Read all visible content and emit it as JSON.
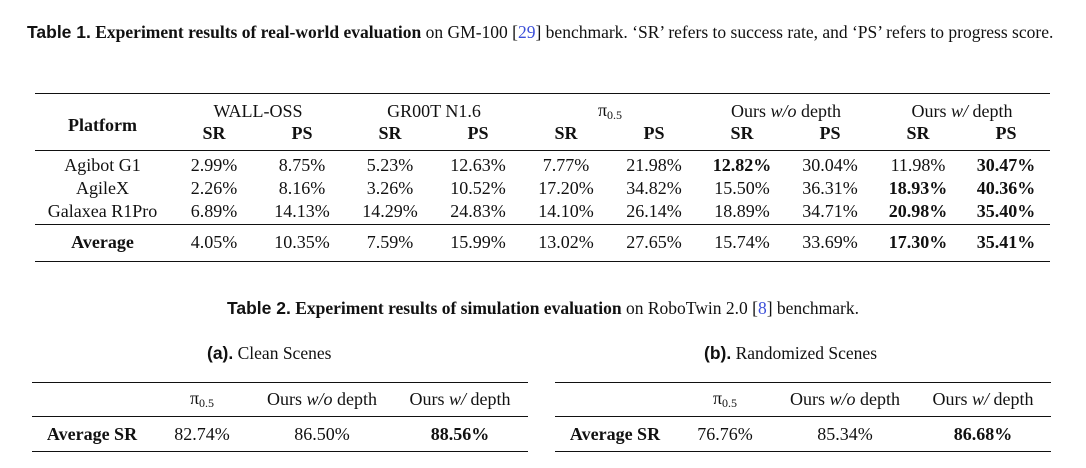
{
  "table1": {
    "caption": {
      "label": "Table 1.",
      "title": "Experiment results of real-world evaluation",
      "text_before_ref": " on GM-100 [",
      "ref": "29",
      "text_after_ref": "] benchmark. ‘SR’ refers to success rate, and ‘PS’ refers to progress score."
    },
    "platform_header": "Platform",
    "groups": [
      {
        "name": "WALL-OSS"
      },
      {
        "name": "GR00T N1.6"
      },
      {
        "name": "π",
        "subscript": "0.5"
      },
      {
        "name": "Ours",
        "italic": "w/o",
        "suffix": "depth"
      },
      {
        "name": "Ours",
        "italic": "w/",
        "suffix": "depth"
      }
    ],
    "metrics": [
      "SR",
      "PS"
    ],
    "rows": [
      {
        "platform": "Agibot G1",
        "cells": [
          "2.99%",
          "8.75%",
          "5.23%",
          "12.63%",
          "7.77%",
          "21.98%",
          "12.82%",
          "30.04%",
          "11.98%",
          "30.47%"
        ],
        "bold": [
          6,
          9
        ]
      },
      {
        "platform": "AgileX",
        "cells": [
          "2.26%",
          "8.16%",
          "3.26%",
          "10.52%",
          "17.20%",
          "34.82%",
          "15.50%",
          "36.31%",
          "18.93%",
          "40.36%"
        ],
        "bold": [
          8,
          9
        ]
      },
      {
        "platform": "Galaxea R1Pro",
        "cells": [
          "6.89%",
          "14.13%",
          "14.29%",
          "24.83%",
          "14.10%",
          "26.14%",
          "18.89%",
          "34.71%",
          "20.98%",
          "35.40%"
        ],
        "bold": [
          8,
          9
        ]
      }
    ],
    "average": {
      "platform": "Average",
      "cells": [
        "4.05%",
        "10.35%",
        "7.59%",
        "15.99%",
        "13.02%",
        "27.65%",
        "15.74%",
        "33.69%",
        "17.30%",
        "35.41%"
      ],
      "bold": [
        8,
        9
      ]
    }
  },
  "table2": {
    "caption": {
      "label": "Table 2.",
      "title": "Experiment results of simulation evaluation",
      "text_before_ref": " on RoboTwin 2.0 [",
      "ref": "8",
      "text_after_ref": "] benchmark."
    },
    "subtables": [
      {
        "label": "(a).",
        "caption": "Clean Scenes",
        "columns": [
          {
            "name": "π",
            "subscript": "0.5"
          },
          {
            "name": "Ours",
            "italic": "w/o",
            "suffix": "depth"
          },
          {
            "name": "Ours",
            "italic": "w/",
            "suffix": "depth"
          }
        ],
        "row_label": "Average SR",
        "cells": [
          "82.74%",
          "86.50%",
          "88.56%"
        ],
        "bold": [
          2
        ]
      },
      {
        "label": "(b).",
        "caption": "Randomized Scenes",
        "columns": [
          {
            "name": "π",
            "subscript": "0.5"
          },
          {
            "name": "Ours",
            "italic": "w/o",
            "suffix": "depth"
          },
          {
            "name": "Ours",
            "italic": "w/",
            "suffix": "depth"
          }
        ],
        "row_label": "Average SR",
        "cells": [
          "76.76%",
          "85.34%",
          "86.68%"
        ],
        "bold": [
          2
        ]
      }
    ]
  }
}
